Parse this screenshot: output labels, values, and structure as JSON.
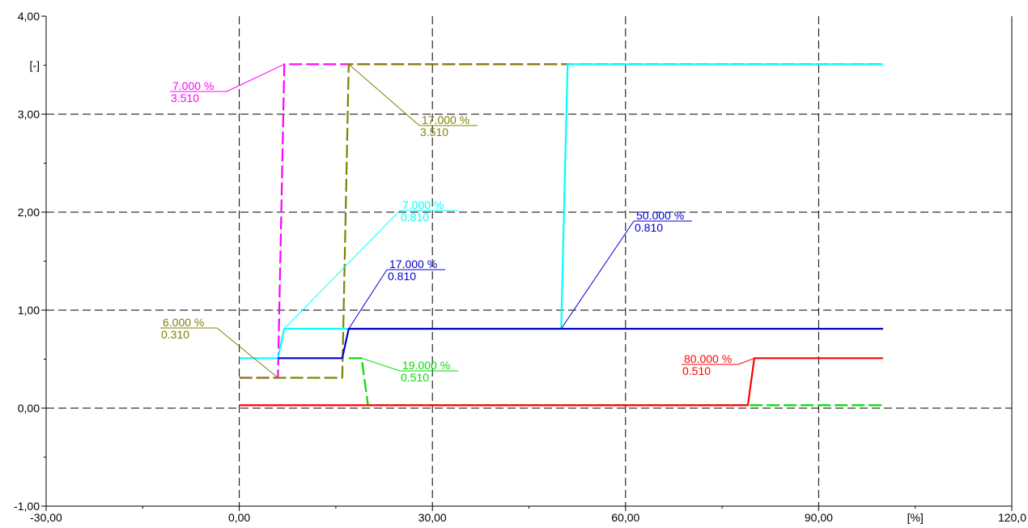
{
  "chart_data": {
    "type": "line",
    "title": "",
    "xlabel": "",
    "ylabel": "",
    "x_unit": "[%]",
    "y_unit": "[-]",
    "xlim": [
      -30,
      120
    ],
    "ylim": [
      -1,
      4
    ],
    "x_ticks": [
      "-30,00",
      "0,00",
      "30,00",
      "60,00",
      "90,00",
      "120,0"
    ],
    "y_ticks": [
      "-1,00",
      "0,00",
      "1,00",
      "2,00",
      "3,00",
      "4,00"
    ],
    "grid": true,
    "series": [
      {
        "color": "#ff00ff",
        "dash": true,
        "points": [
          [
            0,
            0.31
          ],
          [
            6,
            0.31
          ],
          [
            7,
            3.51
          ],
          [
            100,
            3.51
          ]
        ]
      },
      {
        "color": "#808000",
        "dash": true,
        "points": [
          [
            0,
            0.31
          ],
          [
            16,
            0.31
          ],
          [
            17,
            3.51
          ],
          [
            100,
            3.51
          ]
        ]
      },
      {
        "color": "#00ffff",
        "dash": false,
        "points": [
          [
            0,
            0.51
          ],
          [
            6,
            0.51
          ],
          [
            7,
            0.81
          ],
          [
            50,
            0.81
          ],
          [
            51,
            3.51
          ],
          [
            100,
            3.51
          ]
        ]
      },
      {
        "color": "#0000cc",
        "dash": false,
        "points": [
          [
            6,
            0.51
          ],
          [
            16,
            0.51
          ],
          [
            17,
            0.81
          ],
          [
            100,
            0.81
          ]
        ]
      },
      {
        "color": "#00dd00",
        "dash": true,
        "points": [
          [
            17,
            0.51
          ],
          [
            19,
            0.51
          ],
          [
            20,
            0.03
          ],
          [
            100,
            0.03
          ]
        ]
      },
      {
        "color": "#ff0000",
        "dash": false,
        "points": [
          [
            0,
            0.03
          ],
          [
            79,
            0.03
          ],
          [
            80,
            0.51
          ],
          [
            100,
            0.51
          ]
        ]
      }
    ],
    "annotations": [
      {
        "color": "#ff00ff",
        "x_label": "7.000 %",
        "y_label": "3.510",
        "point": [
          7,
          3.51
        ],
        "place": "left"
      },
      {
        "color": "#808000",
        "x_label": "17.000 %",
        "y_label": "3.510",
        "point": [
          17,
          3.51
        ],
        "place": "right"
      },
      {
        "color": "#00ffff",
        "x_label": "7.000 %",
        "y_label": "0.810",
        "point": [
          7,
          0.81
        ],
        "place": "right"
      },
      {
        "color": "#0000cc",
        "x_label": "17.000 %",
        "y_label": "0.810",
        "point": [
          17,
          0.81
        ],
        "place": "right"
      },
      {
        "color": "#0000cc",
        "x_label": "50.000 %",
        "y_label": "0.810",
        "point": [
          50,
          0.81
        ],
        "place": "right"
      },
      {
        "color": "#808000",
        "x_label": "6.000 %",
        "y_label": "0.310",
        "point": [
          6,
          0.31
        ],
        "place": "left"
      },
      {
        "color": "#00dd00",
        "x_label": "19.000 %",
        "y_label": "0.510",
        "point": [
          19,
          0.51
        ],
        "place": "right"
      },
      {
        "color": "#ff0000",
        "x_label": "80.000 %",
        "y_label": "0.510",
        "point": [
          80,
          0.51
        ],
        "place": "left"
      }
    ]
  }
}
